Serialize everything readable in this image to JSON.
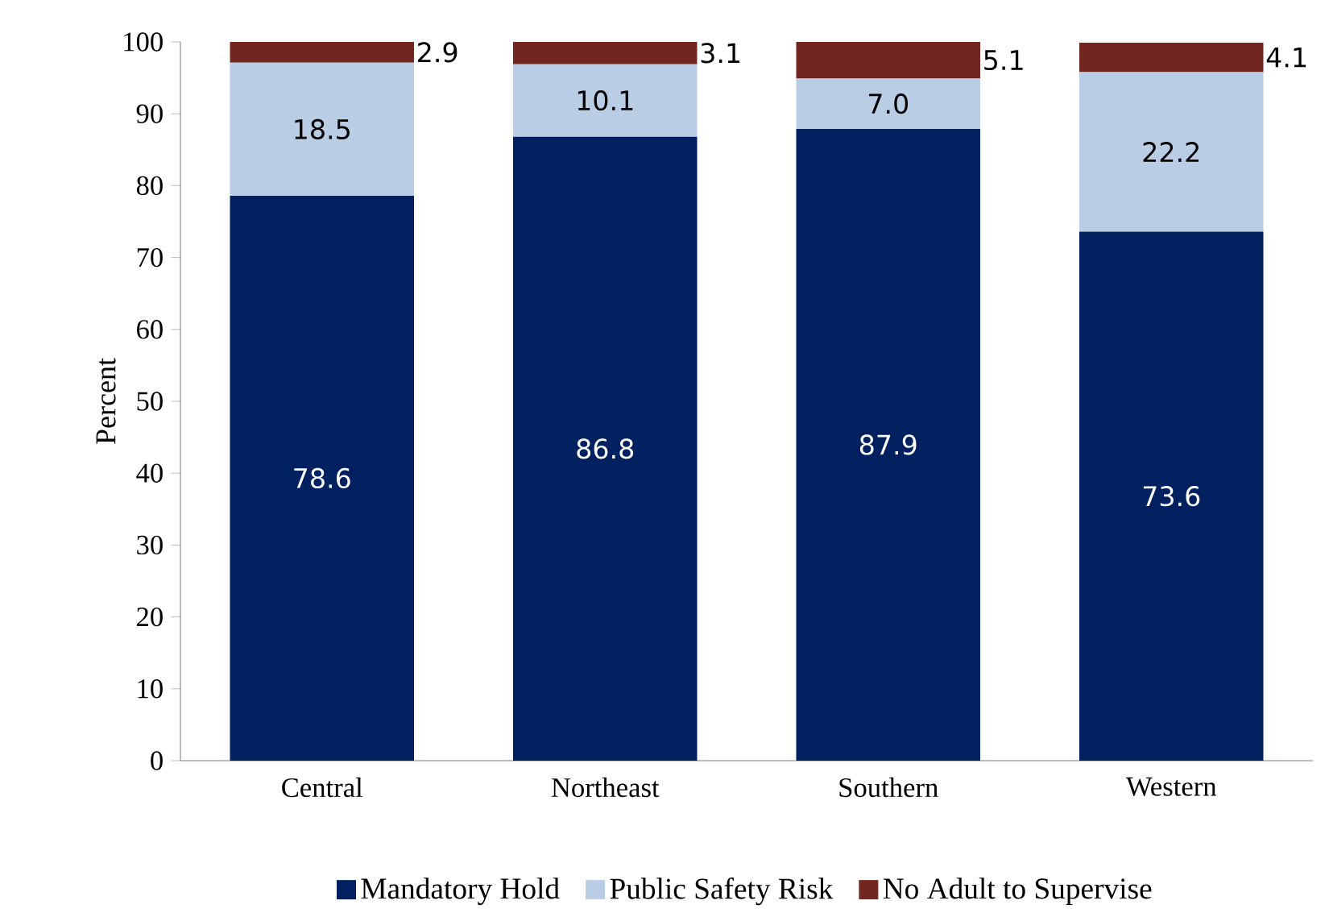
{
  "chart_data": {
    "type": "bar",
    "stacked": true,
    "ylabel": "Percent",
    "categories": [
      "Central",
      "Northeast",
      "Southern",
      "Western"
    ],
    "series": [
      {
        "name": "Mandatory Hold",
        "color": "#002060",
        "values": [
          78.6,
          86.8,
          87.9,
          73.6
        ],
        "value_labels": [
          "78.6",
          "86.8",
          "87.9",
          "73.6"
        ]
      },
      {
        "name": "Public Safety Risk",
        "color": "#b9cde5",
        "values": [
          18.5,
          10.1,
          7.0,
          22.2
        ],
        "value_labels": [
          "18.5",
          "10.1",
          "7.0",
          "22.2"
        ]
      },
      {
        "name": "No Adult to Supervise",
        "color": "#722620",
        "values": [
          2.9,
          3.1,
          5.1,
          4.1
        ],
        "value_labels": [
          "2.9",
          "3.1",
          "5.1",
          "4.1"
        ]
      }
    ],
    "ylim": [
      0,
      100
    ],
    "yticks": [
      0,
      10,
      20,
      30,
      40,
      50,
      60,
      70,
      80,
      90,
      100
    ],
    "legend": "bottom"
  }
}
